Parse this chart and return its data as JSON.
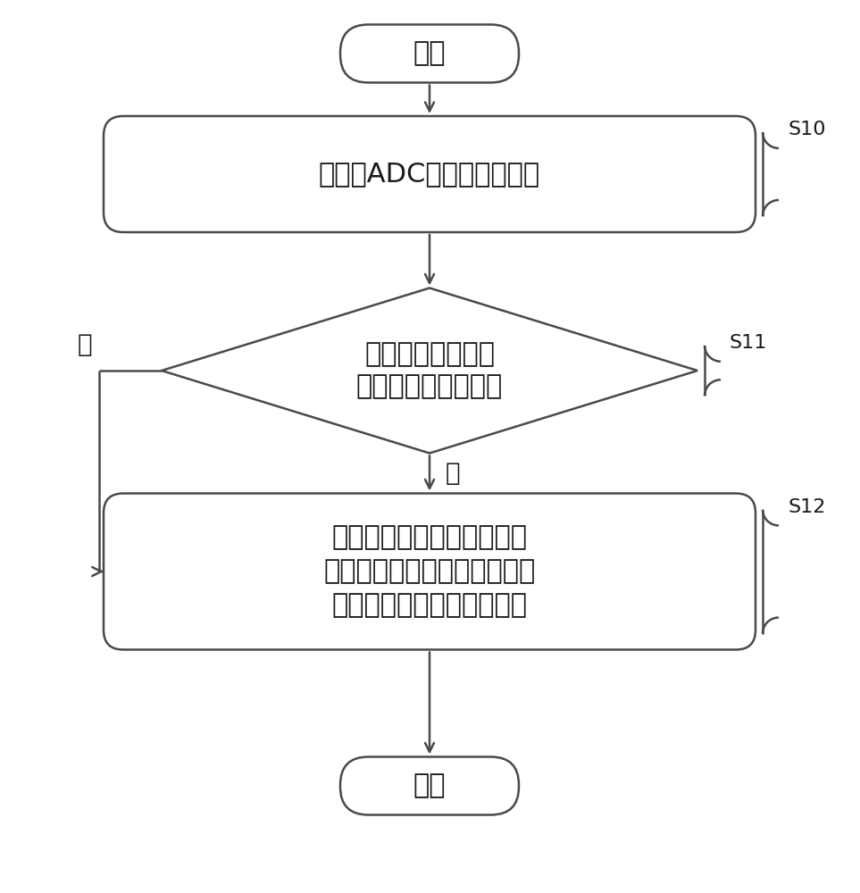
{
  "bg_color": "#ffffff",
  "line_color": "#4a4a4a",
  "fill_color": "#ffffff",
  "text_color": "#1a1a1a",
  "start_label": "开始",
  "end_label": "结束",
  "box1_label": "接收由ADC发送的数字信号",
  "diamond_label_1": "根据数字信号判断",
  "diamond_label_2": "传感器是否存在故障",
  "box2_label_1": "利用颗粒算法根据数字信号",
  "box2_label_2": "和与用户需求对应的目标颗粒",
  "box2_label_3": "直径计算对应的目标颗粒数",
  "yes_label": "是",
  "no_label": "否",
  "s10_label": "S10",
  "s11_label": "S11",
  "s12_label": "S12",
  "font_size_main": 22,
  "font_size_step_tag": 16,
  "font_size_yn": 20,
  "lw": 1.8
}
